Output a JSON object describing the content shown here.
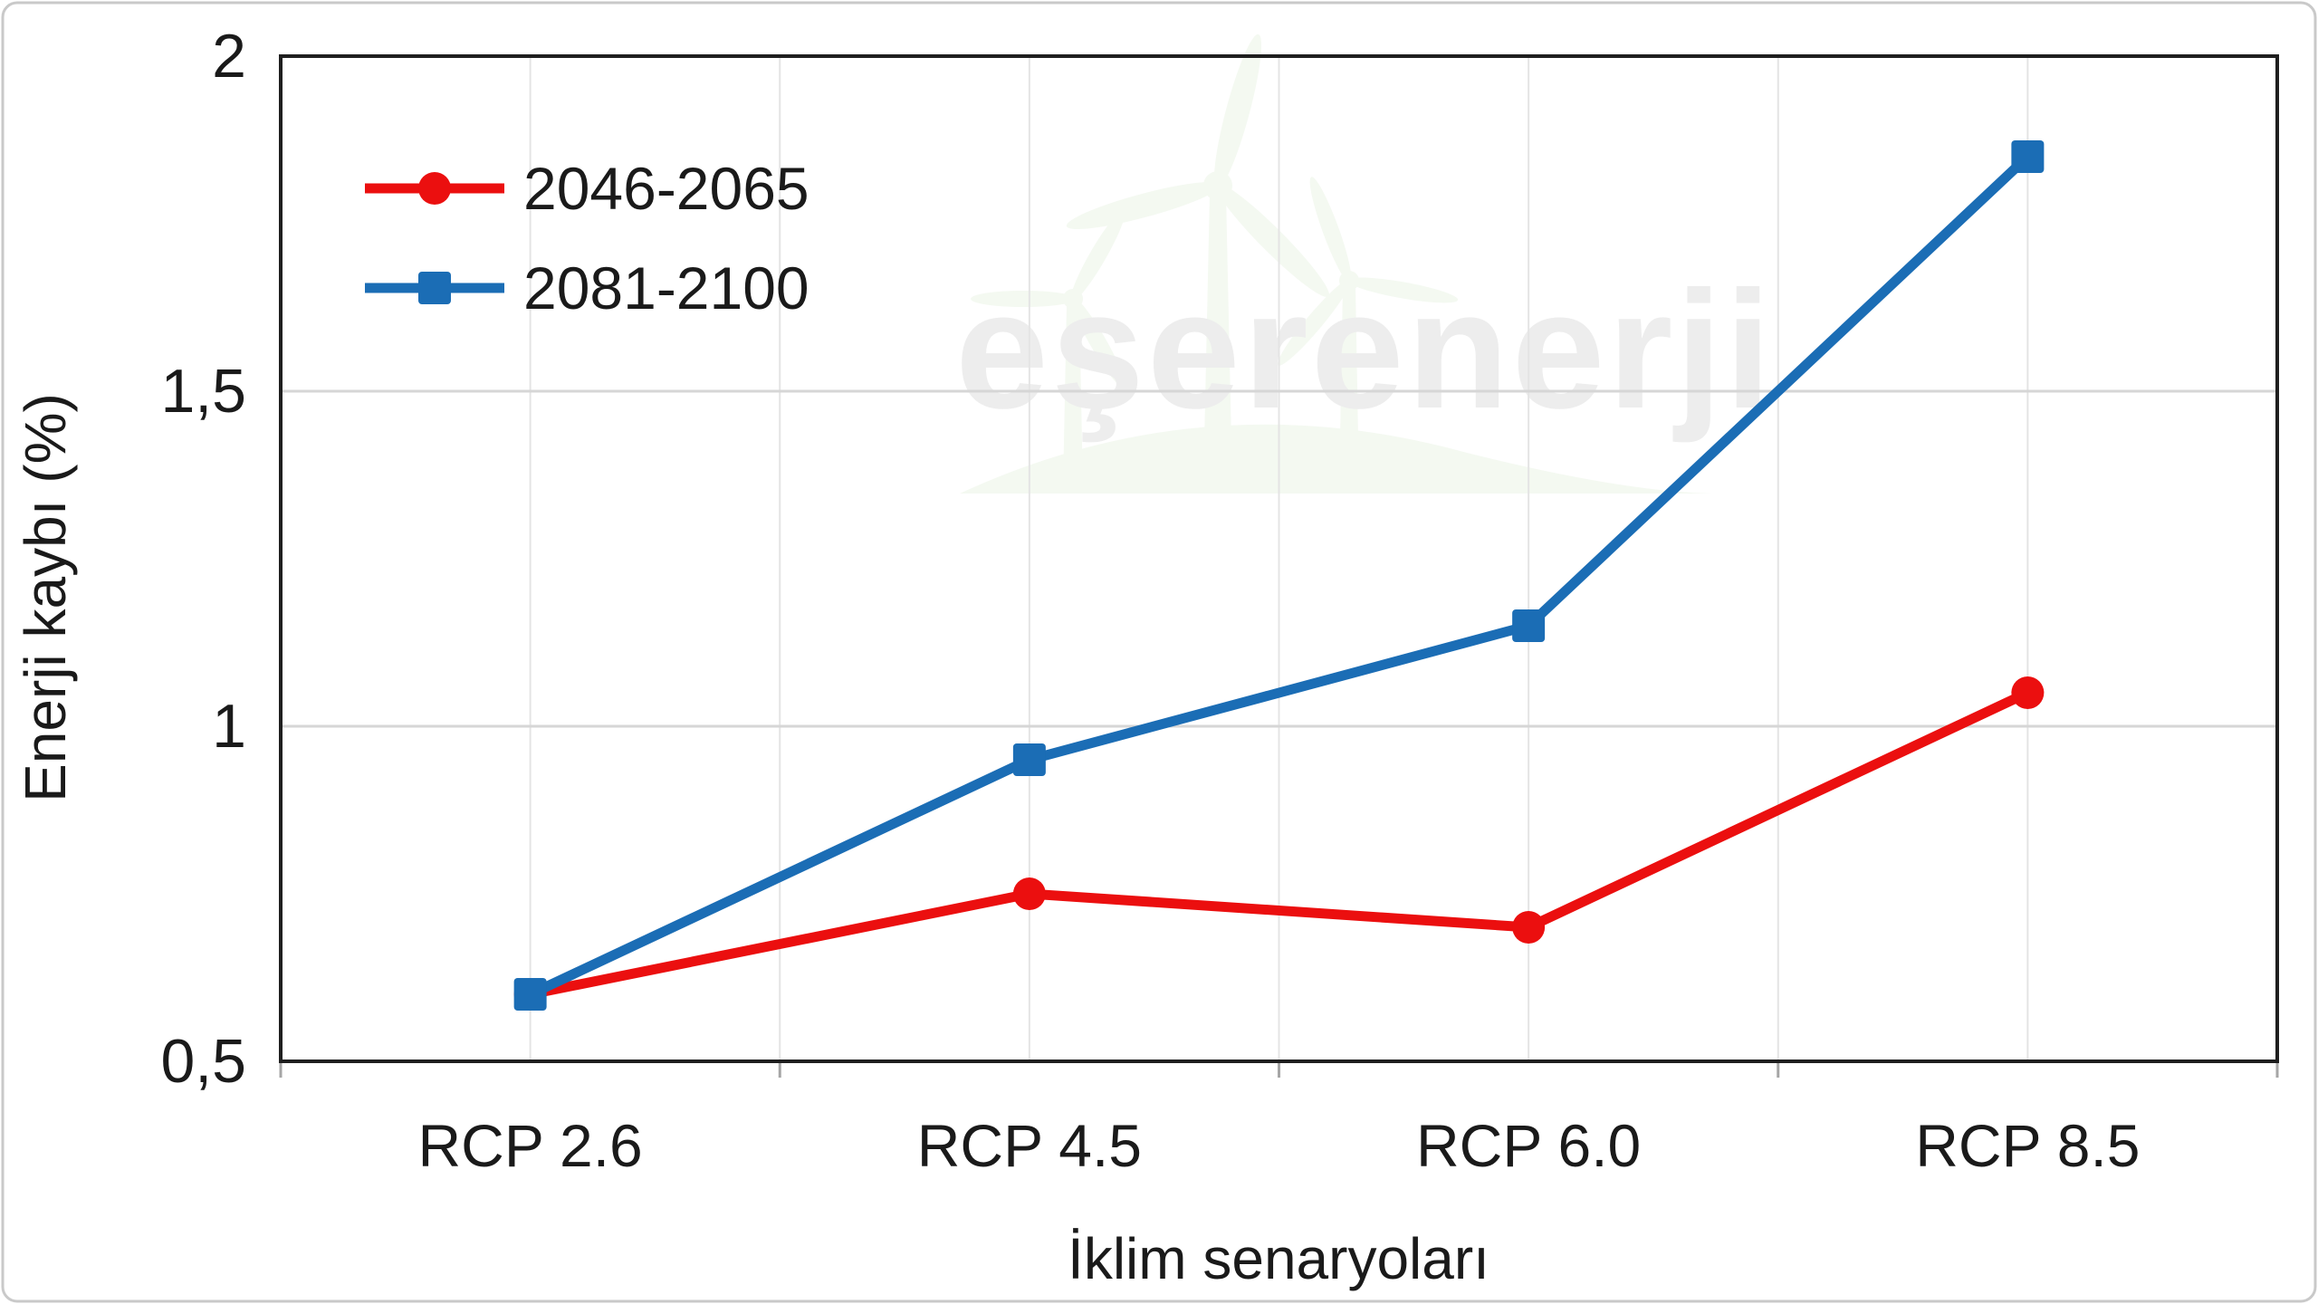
{
  "figure": {
    "background_color": "#ffffff",
    "outer_border_color": "#c9c9c9"
  },
  "watermark": {
    "text": "eşerenerji",
    "color": "#6fae4e",
    "opacity": 0.08
  },
  "chart_data": {
    "type": "line",
    "title": "",
    "categories": [
      "RCP 2.6",
      "RCP 4.5",
      "RCP 6.0",
      "RCP 8.5"
    ],
    "series": [
      {
        "name": "2046-2065",
        "color": "#eb0f0f",
        "marker": "circle",
        "values": [
          0.6,
          0.75,
          0.7,
          1.05
        ]
      },
      {
        "name": "2081-2100",
        "color": "#1b6db5",
        "marker": "square",
        "values": [
          0.6,
          0.95,
          1.15,
          1.85
        ]
      }
    ],
    "xlabel": "İklim senaryoları",
    "ylabel": "Enerji kaybı (%)",
    "ylim": [
      0.5,
      2
    ],
    "yticks": [
      {
        "value": 2,
        "label": "2"
      },
      {
        "value": 1.5,
        "label": "1,5"
      },
      {
        "value": 1,
        "label": "1"
      },
      {
        "value": 0.5,
        "label": "0,5"
      }
    ],
    "grid": true,
    "legend_position": "top-left-inside",
    "frame_color": "#1f1f1f",
    "grid_color_vertical": "#e4e4e4",
    "grid_color_horizontal": "#d6d6d6",
    "tick_color": "#a6a6a6"
  }
}
